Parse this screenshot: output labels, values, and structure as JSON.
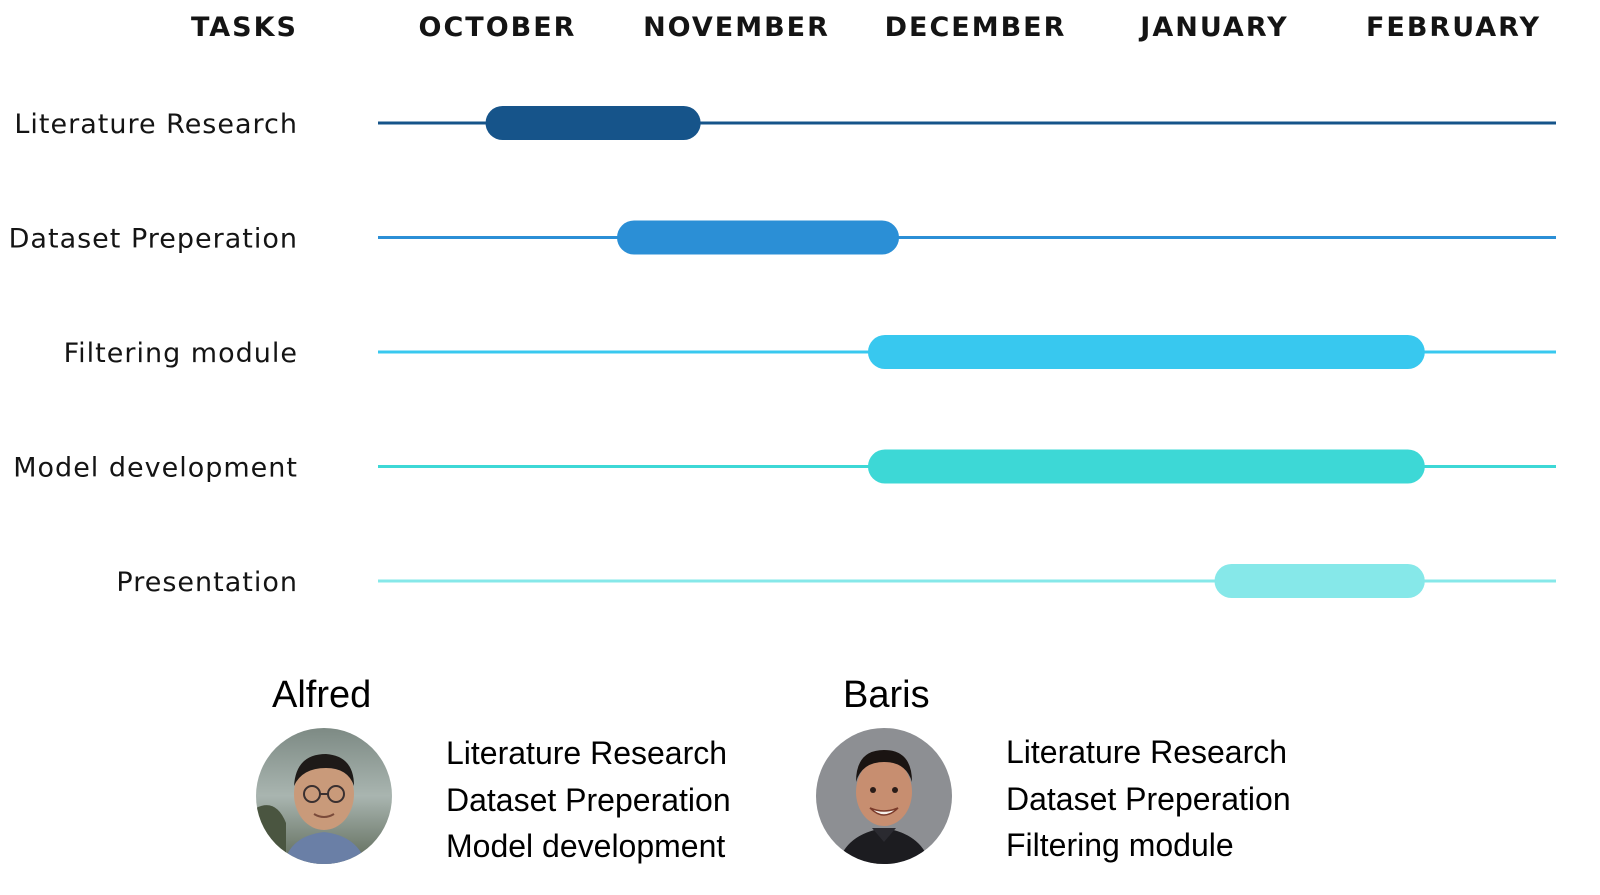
{
  "chart_data": {
    "type": "gantt",
    "header_label": "TASKS",
    "months": [
      "OCTOBER",
      "NOVEMBER",
      "DECEMBER",
      "JANUARY",
      "FEBRUARY"
    ],
    "tasks": [
      {
        "name": "Literature Research",
        "start": 0.45,
        "end": 1.35,
        "color": "#16548a"
      },
      {
        "name": "Dataset Preperation",
        "start": 1.0,
        "end": 2.18,
        "color": "#2b8fd6"
      },
      {
        "name": "Filtering module",
        "start": 2.05,
        "end": 4.38,
        "color": "#38c8ef"
      },
      {
        "name": "Model development",
        "start": 2.05,
        "end": 4.38,
        "color": "#3dd8d6"
      },
      {
        "name": "Presentation",
        "start": 3.5,
        "end": 4.38,
        "color": "#86e8e9"
      }
    ]
  },
  "team": [
    {
      "name": "Alfred",
      "tasks": [
        "Literature Research",
        "Dataset Preperation",
        "Model development"
      ]
    },
    {
      "name": "Baris",
      "tasks": [
        "Literature Research",
        "Dataset Preperation",
        "Filtering module"
      ]
    }
  ]
}
